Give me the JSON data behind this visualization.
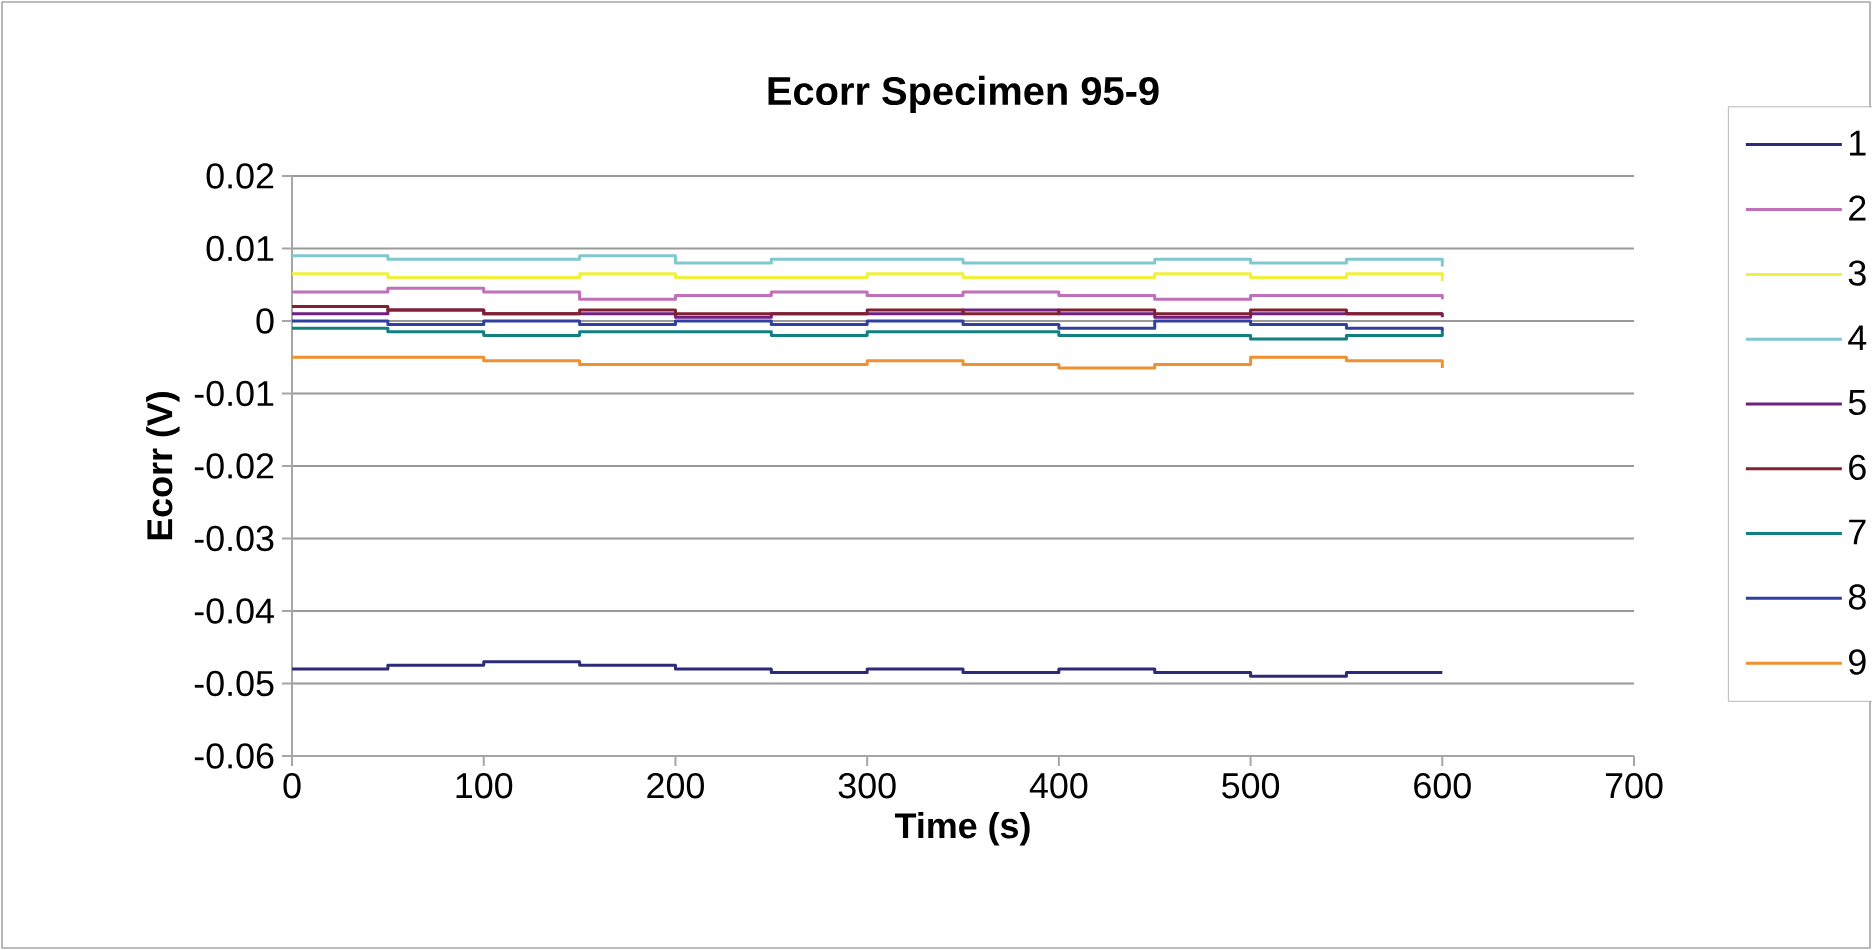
{
  "chart_data": {
    "type": "step",
    "title": "Ecorr Specimen 95-9",
    "xlabel": "Time (s)",
    "ylabel": "Ecorr (V)",
    "x": [
      0,
      50,
      100,
      150,
      200,
      250,
      300,
      350,
      400,
      450,
      500,
      550,
      600
    ],
    "xlim": [
      0,
      700
    ],
    "xticks": [
      0,
      100,
      200,
      300,
      400,
      500,
      600,
      700
    ],
    "ylim": [
      -0.06,
      0.02
    ],
    "yticks": [
      -0.06,
      -0.05,
      -0.04,
      -0.03,
      -0.02,
      -0.01,
      0,
      0.01,
      0.02
    ],
    "grid": "y",
    "legend": "right",
    "marker": "none",
    "line_style": "solid",
    "series": [
      {
        "name": "1",
        "color": "#2e2a7a",
        "values": [
          -0.048,
          -0.0475,
          -0.047,
          -0.0475,
          -0.048,
          -0.0485,
          -0.048,
          -0.0485,
          -0.048,
          -0.0485,
          -0.049,
          -0.0485,
          -0.0485
        ]
      },
      {
        "name": "2",
        "color": "#c070b8",
        "values": [
          0.004,
          0.0045,
          0.004,
          0.003,
          0.0035,
          0.004,
          0.0035,
          0.004,
          0.0035,
          0.003,
          0.0035,
          0.0035,
          0.003
        ]
      },
      {
        "name": "3",
        "color": "#f0f040",
        "values": [
          0.0065,
          0.006,
          0.006,
          0.0065,
          0.006,
          0.006,
          0.0065,
          0.006,
          0.006,
          0.0065,
          0.006,
          0.0065,
          0.0055
        ]
      },
      {
        "name": "4",
        "color": "#80c8d0",
        "values": [
          0.009,
          0.0085,
          0.0085,
          0.009,
          0.008,
          0.0085,
          0.0085,
          0.008,
          0.008,
          0.0085,
          0.008,
          0.0085,
          0.0075
        ]
      },
      {
        "name": "5",
        "color": "#702080",
        "values": [
          0.001,
          0.0015,
          0.001,
          0.001,
          0.0005,
          0.001,
          0.001,
          0.0015,
          0.001,
          0.0005,
          0.001,
          0.001,
          0.0005
        ]
      },
      {
        "name": "6",
        "color": "#802030",
        "values": [
          0.002,
          0.0015,
          0.001,
          0.0015,
          0.001,
          0.001,
          0.0015,
          0.001,
          0.0015,
          0.001,
          0.0015,
          0.001,
          0.001
        ]
      },
      {
        "name": "7",
        "color": "#108080",
        "values": [
          -0.001,
          -0.0015,
          -0.002,
          -0.0015,
          -0.0015,
          -0.002,
          -0.0015,
          -0.0015,
          -0.002,
          -0.002,
          -0.0025,
          -0.002,
          -0.0015
        ]
      },
      {
        "name": "8",
        "color": "#3040a0",
        "values": [
          0,
          -0.0005,
          0,
          -0.0005,
          0,
          -0.0005,
          0,
          -0.0005,
          -0.001,
          0,
          -0.0005,
          -0.001,
          -0.0015
        ]
      },
      {
        "name": "9",
        "color": "#f09030",
        "values": [
          -0.005,
          -0.005,
          -0.0055,
          -0.006,
          -0.006,
          -0.006,
          -0.0055,
          -0.006,
          -0.0065,
          -0.006,
          -0.005,
          -0.0055,
          -0.0065
        ]
      }
    ]
  }
}
